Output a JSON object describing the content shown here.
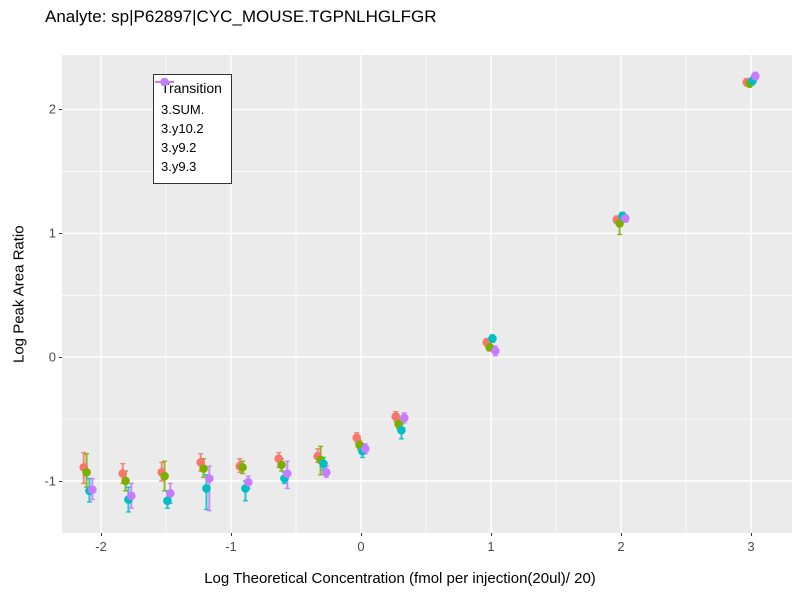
{
  "page": {
    "title": "Analyte: sp|P62897|CYC_MOUSE.TGPNLHGLFGR"
  },
  "chart_data": {
    "type": "scatter",
    "title": "Analyte: sp|P62897|CYC_MOUSE.TGPNLHGLFGR",
    "xlabel": "Log Theoretical Concentration (fmol per injection(20ul)/ 20)",
    "ylabel": "Log Peak Area Ratio",
    "xlim": [
      -2.3,
      3.315
    ],
    "ylim": [
      -1.42,
      2.44
    ],
    "x_ticks": [
      -2,
      -1,
      0,
      1,
      2,
      3
    ],
    "y_ticks": [
      -1,
      0,
      1,
      2
    ],
    "x_minor_ticks": [
      -1.5,
      -0.5,
      0.5,
      1.5,
      2.5
    ],
    "y_minor_ticks": [
      -0.5,
      0.5,
      1.5
    ],
    "grid": true,
    "panel_bg": "#EBEBEB",
    "grid_color": "#FFFFFF",
    "legend": {
      "title": "Transition",
      "position": "top-left-inside"
    },
    "x": [
      -2.1,
      -1.8,
      -1.5,
      -1.2,
      -0.9,
      -0.6,
      -0.3,
      0,
      0.3,
      1,
      2,
      3
    ],
    "series": [
      {
        "name": "3.SUM.",
        "color": "#F8766D",
        "dodge": -0.033,
        "y": [
          -0.89,
          -0.94,
          -0.93,
          -0.85,
          -0.88,
          -0.82,
          -0.8,
          -0.65,
          -0.48,
          0.12,
          1.11,
          2.22
        ],
        "ylo": [
          -1.02,
          -1.02,
          -1.0,
          -0.92,
          -0.93,
          -0.89,
          -0.85,
          -0.69,
          -0.52,
          0.09,
          1.08,
          2.19
        ],
        "yhi": [
          -0.77,
          -0.86,
          -0.85,
          -0.78,
          -0.82,
          -0.77,
          -0.74,
          -0.61,
          -0.44,
          0.15,
          1.14,
          2.25
        ]
      },
      {
        "name": "3.y10.2",
        "color": "#7CAE00",
        "dodge": -0.011,
        "y": [
          -0.93,
          -1.0,
          -0.96,
          -0.9,
          -0.89,
          -0.87,
          -0.83,
          -0.71,
          -0.54,
          0.08,
          1.08,
          2.21
        ],
        "ylo": [
          -1.05,
          -1.08,
          -1.08,
          -0.97,
          -0.94,
          -0.92,
          -0.95,
          -0.75,
          -0.58,
          0.05,
          0.99,
          2.18
        ],
        "yhi": [
          -0.78,
          -0.92,
          -0.84,
          -0.82,
          -0.84,
          -0.82,
          -0.72,
          -0.67,
          -0.5,
          0.11,
          1.12,
          2.24
        ]
      },
      {
        "name": "3.y9.2",
        "color": "#00BFC4",
        "dodge": 0.011,
        "y": [
          -1.08,
          -1.15,
          -1.16,
          -1.06,
          -1.06,
          -0.98,
          -0.86,
          -0.76,
          -0.59,
          0.15,
          1.14,
          2.23
        ],
        "ylo": [
          -1.17,
          -1.25,
          -1.22,
          -1.23,
          -1.16,
          -1.02,
          -0.91,
          -0.81,
          -0.66,
          0.12,
          1.11,
          2.2
        ],
        "yhi": [
          -0.98,
          -1.05,
          -1.08,
          -0.95,
          -1.0,
          -0.93,
          -0.81,
          -0.71,
          -0.54,
          0.18,
          1.17,
          2.26
        ]
      },
      {
        "name": "3.y9.3",
        "color": "#C77CFF",
        "dodge": 0.033,
        "y": [
          -1.07,
          -1.12,
          -1.1,
          -0.98,
          -1.01,
          -0.94,
          -0.93,
          -0.74,
          -0.49,
          0.05,
          1.12,
          2.27
        ],
        "ylo": [
          -1.15,
          -1.22,
          -1.18,
          -1.24,
          -1.06,
          -1.06,
          -0.97,
          -0.78,
          -0.53,
          0.01,
          1.09,
          2.24
        ],
        "yhi": [
          -0.98,
          -1.02,
          -1.02,
          -0.88,
          -0.96,
          -0.84,
          -0.88,
          -0.7,
          -0.45,
          0.09,
          1.15,
          2.3
        ]
      }
    ]
  }
}
